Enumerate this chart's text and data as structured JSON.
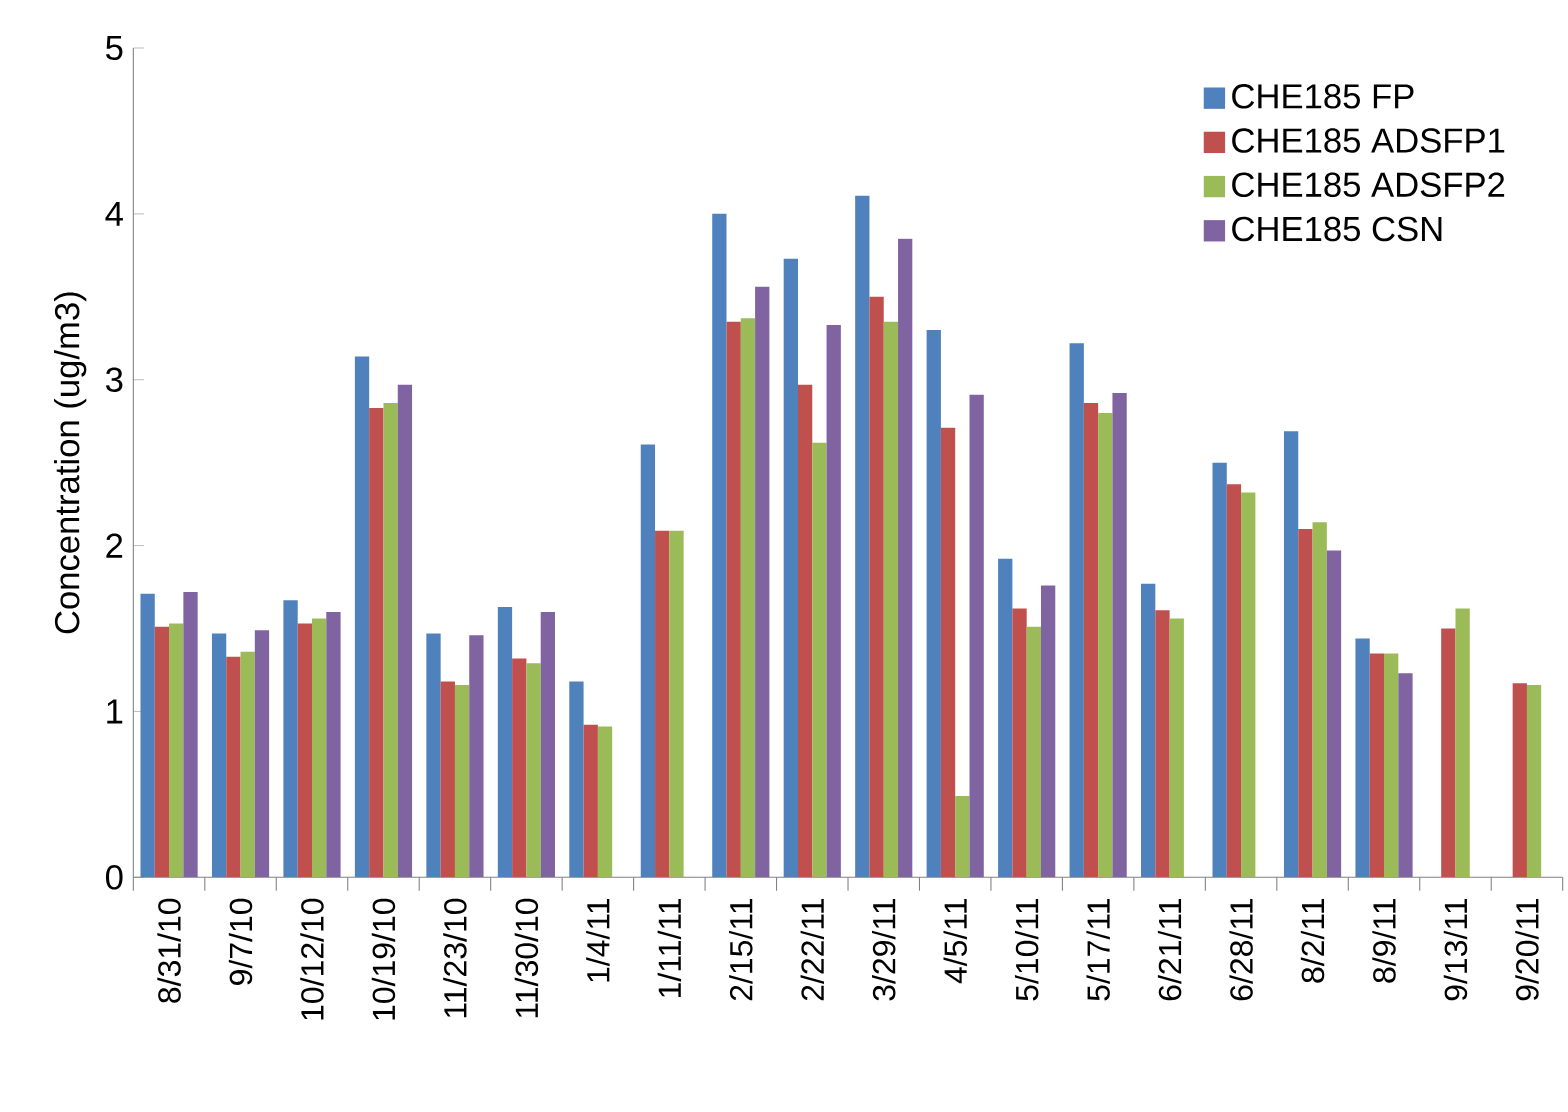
{
  "chart_data": {
    "type": "bar",
    "ylabel": "Concentration (ug/m3)",
    "categories": [
      "8/31/10",
      "9/7/10",
      "10/12/10",
      "10/19/10",
      "11/23/10",
      "11/30/10",
      "1/4/11",
      "1/11/11",
      "2/15/11",
      "2/22/11",
      "3/29/11",
      "4/5/11",
      "5/10/11",
      "5/17/11",
      "6/21/11",
      "6/28/11",
      "8/2/11",
      "8/9/11",
      "9/13/11",
      "9/20/11"
    ],
    "series": [
      {
        "name": "CHE185 FP",
        "color": "#4f81bd",
        "values": [
          1.71,
          1.47,
          1.67,
          3.14,
          1.47,
          1.63,
          1.18,
          2.61,
          4.0,
          3.73,
          4.11,
          3.3,
          1.92,
          3.22,
          1.77,
          2.5,
          2.69,
          1.44,
          null,
          null
        ]
      },
      {
        "name": "CHE185 ADSFP1",
        "color": "#c0504d",
        "values": [
          1.51,
          1.33,
          1.53,
          2.83,
          1.18,
          1.32,
          0.92,
          2.09,
          3.35,
          2.97,
          3.5,
          2.71,
          1.62,
          2.86,
          1.61,
          2.37,
          2.1,
          1.35,
          1.5,
          1.17
        ]
      },
      {
        "name": "CHE185 ADSFP2",
        "color": "#9bbb59",
        "values": [
          1.53,
          1.36,
          1.56,
          2.86,
          1.16,
          1.29,
          0.91,
          2.09,
          3.37,
          2.62,
          3.35,
          0.49,
          1.51,
          2.8,
          1.56,
          2.32,
          2.14,
          1.35,
          1.62,
          1.16
        ]
      },
      {
        "name": "CHE185 CSN",
        "color": "#8064a2",
        "values": [
          1.72,
          1.49,
          1.6,
          2.97,
          1.46,
          1.6,
          null,
          null,
          3.56,
          3.33,
          3.85,
          2.91,
          1.76,
          2.92,
          null,
          null,
          1.97,
          1.23,
          null,
          null
        ]
      }
    ],
    "ylim": [
      0,
      5
    ],
    "yticks": [
      0,
      1,
      2,
      3,
      4,
      5
    ],
    "legend": "top right"
  }
}
